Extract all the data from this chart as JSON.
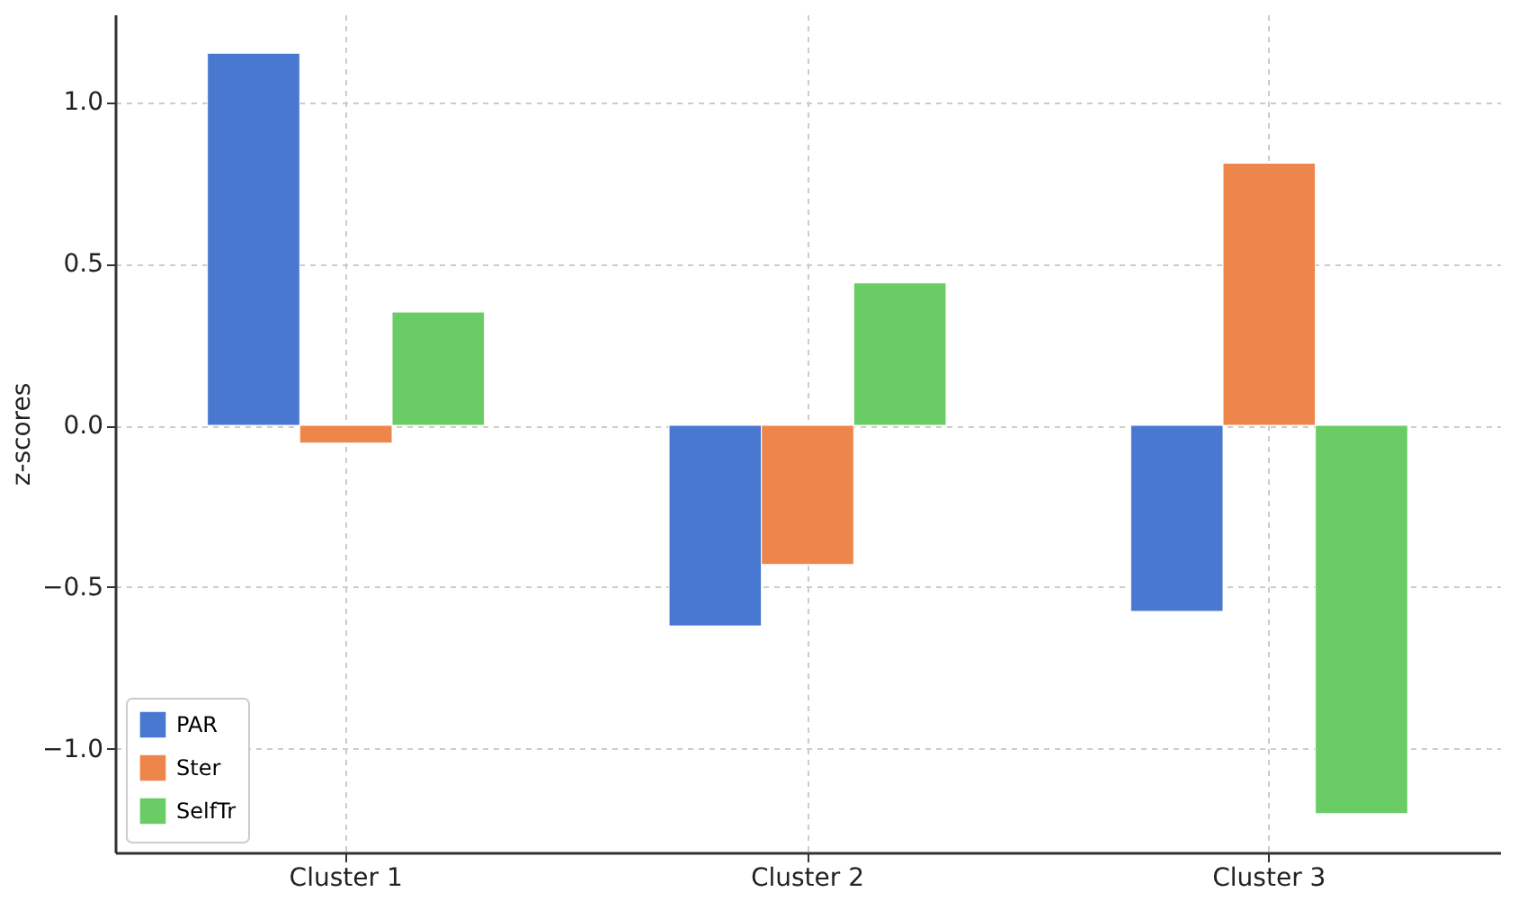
{
  "chart_data": {
    "type": "bar",
    "ylabel": "z-scores",
    "categories": [
      "Cluster 1",
      "Cluster 2",
      "Cluster 3"
    ],
    "series": [
      {
        "name": "PAR",
        "color": "#4878cf",
        "values": [
          1.15,
          -0.62,
          -0.575
        ]
      },
      {
        "name": "Ster",
        "color": "#ee854a",
        "values": [
          -0.055,
          -0.43,
          0.81
        ]
      },
      {
        "name": "SelfTr",
        "color": "#6acc64",
        "values": [
          0.35,
          0.44,
          -1.2
        ]
      }
    ],
    "ylim": [
      -1.32,
      1.27
    ],
    "yticks": [
      {
        "value": -1.0,
        "label": "−1.0"
      },
      {
        "value": -0.5,
        "label": "−0.5"
      },
      {
        "value": 0.0,
        "label": "0.0"
      },
      {
        "value": 0.5,
        "label": "0.5"
      },
      {
        "value": 1.0,
        "label": "1.0"
      }
    ],
    "grid": true,
    "legend": "bottom left"
  }
}
